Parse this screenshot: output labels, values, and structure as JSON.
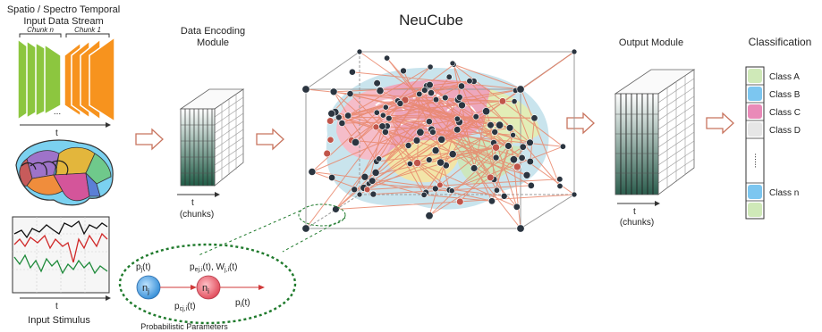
{
  "input_stream": {
    "title_line1": "Spatio / Spectro Temporal",
    "title_line2": "Input Data Stream",
    "chunk_n": "Chunk n",
    "chunk_1": "Chunk 1",
    "ellipsis": "...",
    "time_label": "t",
    "chunk_colors": [
      "#8cc63f",
      "#f7931e"
    ]
  },
  "input_stimulus": {
    "label": "Input Stimulus",
    "time_label": "t"
  },
  "encoding": {
    "title_line1": "Data Encoding",
    "title_line2": "Module",
    "time_label": "t",
    "unit_label": "(chunks)"
  },
  "neucube": {
    "title": "NeuCube",
    "connection_color": "#e9866a"
  },
  "output": {
    "title": "Output Module",
    "time_label": "t",
    "unit_label": "(chunks)"
  },
  "classification": {
    "title": "Classification",
    "classes": [
      "Class A",
      "Class B",
      "Class C",
      "Class D",
      "Class n"
    ],
    "class_colors": [
      "#cfe9b8",
      "#7cc6f0",
      "#e98ab8",
      "#e6e6e6",
      "#7cc6f0"
    ],
    "dots": "......"
  },
  "neuron_detail": {
    "neuron_j": "n",
    "neuron_j_sub": "j",
    "neuron_i": "n",
    "neuron_i_sub": "i",
    "pj": "p",
    "pj_sub": "j",
    "pj_tail": "(t)",
    "pej": "p",
    "pej_sub": "ej,i",
    "pej_tail": "(t), W",
    "w_sub": "j,i",
    "w_tail": "(t)",
    "pcj": "p",
    "pcj_sub": "cj,i",
    "pcj_tail": "(t)",
    "pi": "p",
    "pi_sub": "i",
    "pi_tail": "(t)",
    "caption": "Probabilistic Parameters"
  }
}
